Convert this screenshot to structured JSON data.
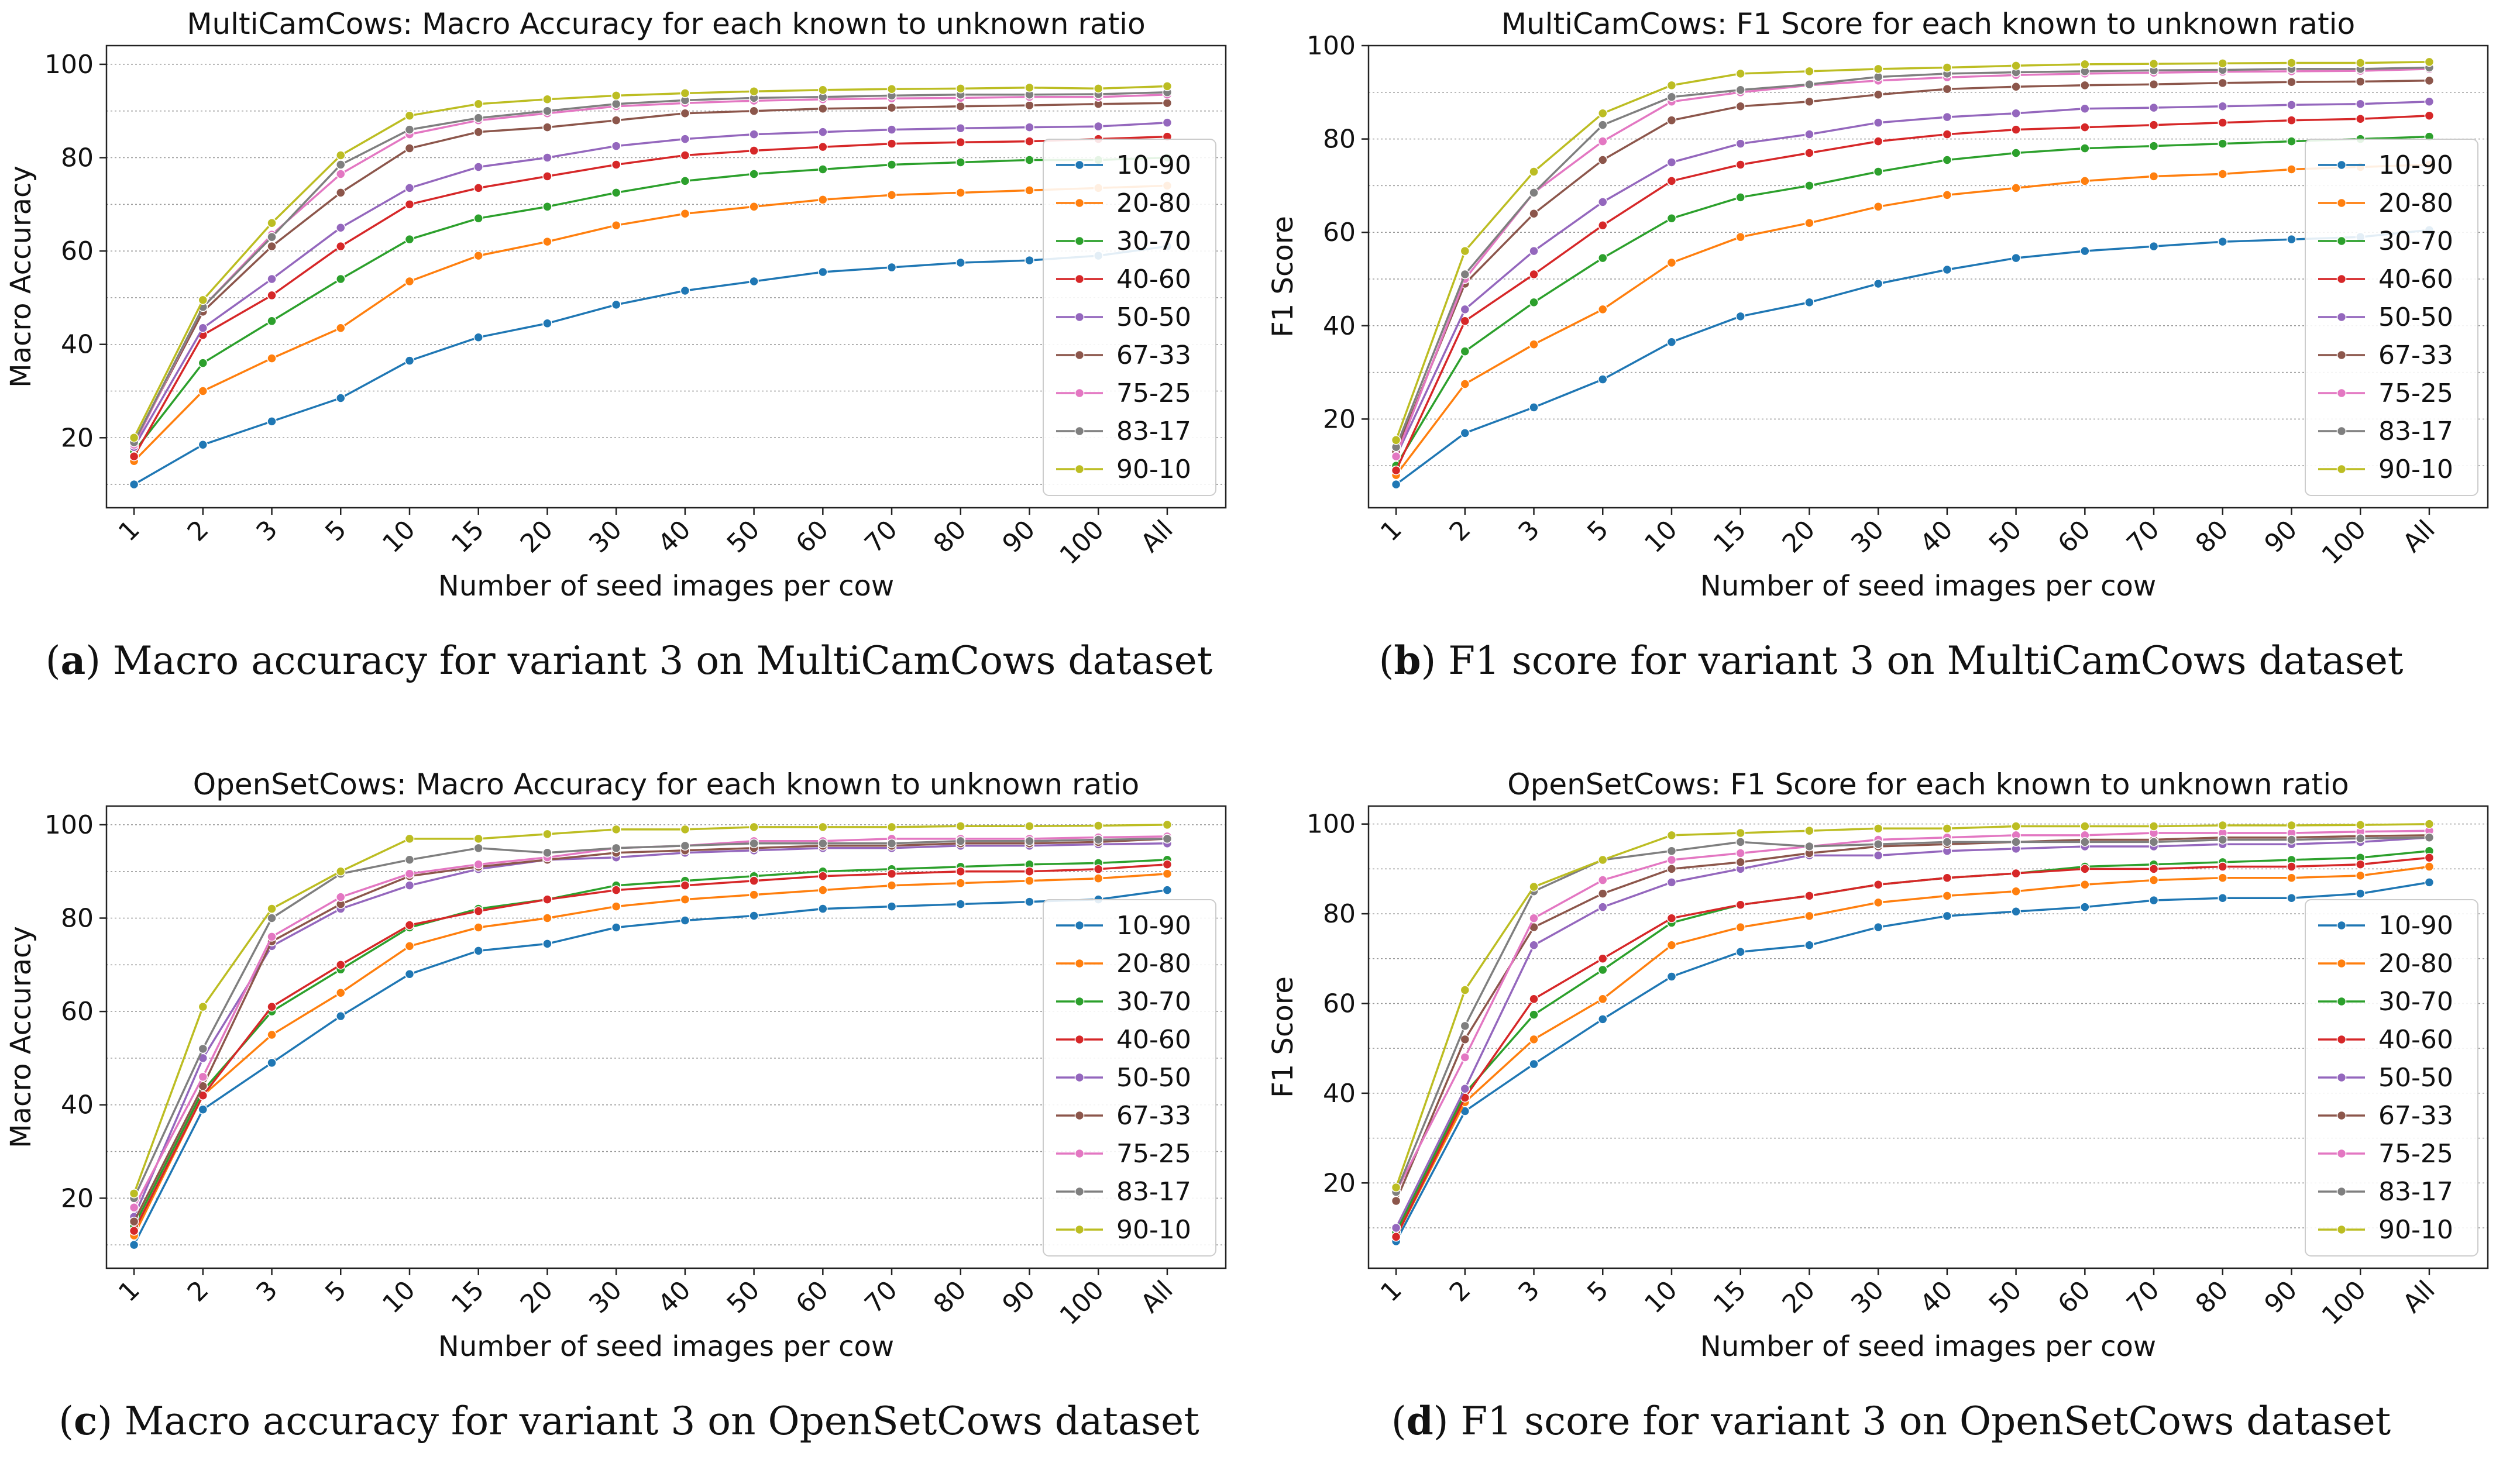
{
  "series_colors": [
    "#1f77b4",
    "#ff7f0e",
    "#2ca02c",
    "#d62728",
    "#9467bd",
    "#8c564b",
    "#e377c2",
    "#7f7f7f",
    "#bcbd22"
  ],
  "panels": [
    {
      "caption_letter": "a",
      "caption_text": "Macro accuracy for variant 3 on MultiCamCows dataset",
      "chart_data": {
        "type": "line",
        "title": "MultiCamCows: Macro Accuracy for each known to unknown ratio",
        "xlabel": "Number of seed images per cow",
        "ylabel": "Macro Accuracy",
        "categories": [
          "1",
          "2",
          "3",
          "5",
          "10",
          "15",
          "20",
          "30",
          "40",
          "50",
          "60",
          "70",
          "80",
          "90",
          "100",
          "All"
        ],
        "ylim": [
          5,
          104
        ],
        "yticks": [
          20,
          40,
          60,
          80,
          100
        ],
        "legend_title": "",
        "legend_position": "right",
        "series": [
          {
            "name": "10-90",
            "values": [
              10,
              18.5,
              23.5,
              28.5,
              36.5,
              41.5,
              44.5,
              48.5,
              51.5,
              53.5,
              55.5,
              56.5,
              57.5,
              58,
              59,
              61
            ]
          },
          {
            "name": "20-80",
            "values": [
              15,
              30,
              37,
              43.5,
              53.5,
              59,
              62,
              65.5,
              68,
              69.5,
              71,
              72,
              72.5,
              73,
              73.5,
              74
            ]
          },
          {
            "name": "30-70",
            "values": [
              17,
              36,
              45,
              54,
              62.5,
              67,
              69.5,
              72.5,
              75,
              76.5,
              77.5,
              78.5,
              79,
              79.5,
              79.5,
              80
            ]
          },
          {
            "name": "40-60",
            "values": [
              16,
              42,
              50.5,
              61,
              70,
              73.5,
              76,
              78.5,
              80.5,
              81.5,
              82.3,
              83,
              83.3,
              83.5,
              84,
              84.5
            ]
          },
          {
            "name": "50-50",
            "values": [
              18,
              43.5,
              54,
              65,
              73.5,
              78,
              80,
              82.5,
              84,
              85,
              85.5,
              86,
              86.3,
              86.5,
              86.7,
              87.5
            ]
          },
          {
            "name": "67-33",
            "values": [
              19,
              47,
              61,
              72.5,
              82,
              85.5,
              86.5,
              88,
              89.5,
              90,
              90.5,
              90.7,
              91,
              91.2,
              91.5,
              91.7
            ]
          },
          {
            "name": "75-25",
            "values": [
              18.5,
              48,
              63.5,
              76.5,
              85,
              88,
              89.5,
              91,
              91.7,
              92.2,
              92.5,
              92.7,
              92.8,
              93,
              93,
              93.5
            ]
          },
          {
            "name": "83-17",
            "values": [
              19,
              48,
              63,
              78.5,
              86,
              88.5,
              90,
              91.5,
              92.3,
              92.8,
              93,
              93.3,
              93.5,
              93.5,
              93.6,
              94
            ]
          },
          {
            "name": "90-10",
            "values": [
              20,
              49.5,
              66,
              80.5,
              89,
              91.5,
              92.5,
              93.3,
              93.8,
              94.2,
              94.5,
              94.7,
              94.8,
              95,
              94.8,
              95.3
            ]
          }
        ]
      }
    },
    {
      "caption_letter": "b",
      "caption_text": "F1 score for variant 3 on MultiCamCows dataset",
      "chart_data": {
        "type": "line",
        "title": "MultiCamCows: F1 Score for each known to unknown ratio",
        "xlabel": "Number of seed images per cow",
        "ylabel": "F1 Score",
        "categories": [
          "1",
          "2",
          "3",
          "5",
          "10",
          "15",
          "20",
          "30",
          "40",
          "50",
          "60",
          "70",
          "80",
          "90",
          "100",
          "All"
        ],
        "ylim": [
          1,
          100
        ],
        "yticks": [
          20,
          40,
          60,
          80,
          100
        ],
        "legend_title": "",
        "legend_position": "right",
        "series": [
          {
            "name": "10-90",
            "values": [
              6,
              17,
              22.5,
              28.5,
              36.5,
              42,
              45,
              49,
              52,
              54.5,
              56,
              57,
              58,
              58.5,
              59,
              60.5
            ]
          },
          {
            "name": "20-80",
            "values": [
              8,
              27.5,
              36,
              43.5,
              53.5,
              59,
              62,
              65.5,
              68,
              69.5,
              71,
              72,
              72.5,
              73.5,
              74,
              74.5
            ]
          },
          {
            "name": "30-70",
            "values": [
              10,
              34.5,
              45,
              54.5,
              63,
              67.5,
              70,
              73,
              75.5,
              77,
              78,
              78.5,
              79,
              79.5,
              80,
              80.5
            ]
          },
          {
            "name": "40-60",
            "values": [
              9,
              41,
              51,
              61.5,
              71,
              74.5,
              77,
              79.5,
              81,
              82,
              82.5,
              83,
              83.5,
              84,
              84.3,
              85
            ]
          },
          {
            "name": "50-50",
            "values": [
              12,
              43.5,
              56,
              66.5,
              75,
              79,
              81,
              83.5,
              84.7,
              85.5,
              86.5,
              86.7,
              87,
              87.3,
              87.5,
              88
            ]
          },
          {
            "name": "67-33",
            "values": [
              13,
              49,
              64,
              75.5,
              84,
              87,
              88,
              89.5,
              90.7,
              91.2,
              91.5,
              91.7,
              92,
              92.2,
              92.3,
              92.5
            ]
          },
          {
            "name": "75-25",
            "values": [
              12,
              50,
              68.5,
              79.5,
              88,
              90,
              91.5,
              92.5,
              93.2,
              93.7,
              94,
              94.2,
              94.4,
              94.5,
              94.6,
              95
            ]
          },
          {
            "name": "83-17",
            "values": [
              14,
              51,
              68.5,
              83,
              89,
              90.5,
              91.7,
              93.3,
              94,
              94.3,
              94.5,
              94.7,
              94.8,
              95,
              95,
              95.3
            ]
          },
          {
            "name": "90-10",
            "values": [
              15.5,
              56,
              73,
              85.5,
              91.5,
              94,
              94.5,
              95,
              95.3,
              95.7,
              96,
              96.1,
              96.2,
              96.3,
              96.3,
              96.5
            ]
          }
        ]
      }
    },
    {
      "caption_letter": "c",
      "caption_text": "Macro accuracy for variant 3 on OpenSetCows dataset",
      "chart_data": {
        "type": "line",
        "title": "OpenSetCows: Macro Accuracy for each known to unknown ratio",
        "xlabel": "Number of seed images per cow",
        "ylabel": "Macro Accuracy",
        "categories": [
          "1",
          "2",
          "3",
          "5",
          "10",
          "15",
          "20",
          "30",
          "40",
          "50",
          "60",
          "70",
          "80",
          "90",
          "100",
          "All"
        ],
        "ylim": [
          5,
          104
        ],
        "yticks": [
          20,
          40,
          60,
          80,
          100
        ],
        "legend_title": "",
        "legend_position": "right",
        "series": [
          {
            "name": "10-90",
            "values": [
              10,
              39,
              49,
              59,
              68,
              73,
              74.5,
              78,
              79.5,
              80.5,
              82,
              82.5,
              83,
              83.5,
              84,
              86
            ]
          },
          {
            "name": "20-80",
            "values": [
              12,
              42,
              55,
              64,
              74,
              78,
              80,
              82.5,
              84,
              85,
              86,
              87,
              87.5,
              88,
              88.5,
              89.5
            ]
          },
          {
            "name": "30-70",
            "values": [
              14,
              43,
              60,
              69,
              78,
              82,
              84,
              87,
              88,
              89,
              90,
              90.5,
              91,
              91.5,
              91.8,
              92.5
            ]
          },
          {
            "name": "40-60",
            "values": [
              13,
              42,
              61,
              70,
              78.5,
              81.5,
              84,
              86,
              87,
              88,
              89,
              89.5,
              90,
              90,
              90.5,
              91.5
            ]
          },
          {
            "name": "50-50",
            "values": [
              16,
              50,
              74,
              82,
              87,
              90.5,
              92.5,
              93,
              94,
              94.5,
              95,
              95,
              95.5,
              95.5,
              95.8,
              96
            ]
          },
          {
            "name": "67-33",
            "values": [
              15,
              44,
              75,
              83,
              89,
              91,
              92.5,
              94,
              94.5,
              95,
              95.5,
              95.5,
              96,
              96,
              96.3,
              97
            ]
          },
          {
            "name": "75-25",
            "values": [
              18,
              46,
              76,
              84.5,
              89.5,
              91.5,
              93,
              95,
              95.5,
              96.5,
              96.5,
              97,
              97,
              97,
              97.3,
              97.5
            ]
          },
          {
            "name": "83-17",
            "values": [
              20,
              52,
              80,
              89.5,
              92.5,
              95,
              94,
              95,
              95.5,
              96,
              96,
              96,
              96.5,
              96.5,
              96.8,
              97
            ]
          },
          {
            "name": "90-10",
            "values": [
              21,
              61,
              82,
              90,
              97,
              97,
              98,
              99,
              99,
              99.5,
              99.5,
              99.5,
              99.7,
              99.7,
              99.8,
              100
            ]
          }
        ]
      }
    },
    {
      "caption_letter": "d",
      "caption_text": "F1 score for variant 3 on OpenSetCows dataset",
      "chart_data": {
        "type": "line",
        "title": "OpenSetCows: F1 Score for each known to unknown ratio",
        "xlabel": "Number of seed images per cow",
        "ylabel": "F1 Score",
        "categories": [
          "1",
          "2",
          "3",
          "5",
          "10",
          "15",
          "20",
          "30",
          "40",
          "50",
          "60",
          "70",
          "80",
          "90",
          "100",
          "All"
        ],
        "ylim": [
          1,
          104
        ],
        "yticks": [
          20,
          40,
          60,
          80,
          100
        ],
        "legend_title": "",
        "legend_position": "right",
        "series": [
          {
            "name": "10-90",
            "values": [
              7,
              36,
              46.5,
              56.5,
              66,
              71.5,
              73,
              77,
              79.5,
              80.5,
              81.5,
              83,
              83.5,
              83.5,
              84.5,
              87
            ]
          },
          {
            "name": "20-80",
            "values": [
              8,
              38,
              52,
              61,
              73,
              77,
              79.5,
              82.5,
              84,
              85,
              86.5,
              87.5,
              88,
              88,
              88.5,
              90.5
            ]
          },
          {
            "name": "30-70",
            "values": [
              9,
              40,
              57.5,
              67.5,
              78,
              82,
              84,
              86.5,
              88,
              89,
              90.5,
              91,
              91.5,
              92,
              92.5,
              94
            ]
          },
          {
            "name": "40-60",
            "values": [
              8,
              39,
              61,
              70,
              79,
              82,
              84,
              86.5,
              88,
              89,
              90,
              90,
              90.5,
              90.5,
              91,
              92.5
            ]
          },
          {
            "name": "50-50",
            "values": [
              10,
              41,
              73,
              81.5,
              87,
              90,
              93,
              93,
              94,
              94.5,
              95,
              95,
              95.5,
              95.5,
              96,
              97
            ]
          },
          {
            "name": "67-33",
            "values": [
              16,
              52,
              77,
              84.5,
              90,
              91.5,
              93.5,
              95,
              95.5,
              96,
              96.5,
              96.5,
              97,
              97,
              97.3,
              97.5
            ]
          },
          {
            "name": "75-25",
            "values": [
              18,
              48,
              79,
              87.5,
              92,
              93.5,
              95,
              96.5,
              97,
              97.5,
              97.5,
              98,
              98,
              98,
              98.3,
              98.5
            ]
          },
          {
            "name": "83-17",
            "values": [
              18,
              55,
              85,
              92,
              94,
              96,
              95,
              95.5,
              96,
              96,
              96,
              96,
              96.5,
              96.5,
              96.8,
              97
            ]
          },
          {
            "name": "90-10",
            "values": [
              19,
              63,
              86,
              92,
              97.5,
              98,
              98.5,
              99,
              99,
              99.5,
              99.5,
              99.5,
              99.7,
              99.7,
              99.8,
              100
            ]
          }
        ]
      }
    }
  ]
}
